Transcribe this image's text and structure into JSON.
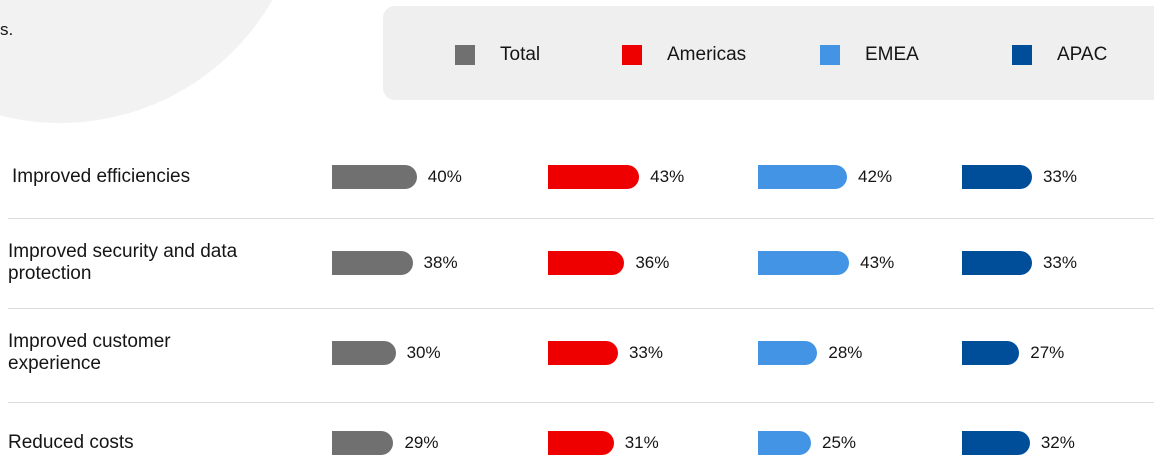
{
  "chart_data": {
    "type": "bar",
    "annotations": [
      "s."
    ],
    "categories": [
      "Improved efficiencies",
      "Improved security and data protection",
      "Improved customer experience",
      "Reduced costs"
    ],
    "series": [
      {
        "name": "Total",
        "color": "#707070",
        "values": [
          40,
          38,
          30,
          29
        ],
        "value_labels": [
          "40%",
          "38%",
          "30%",
          "29%"
        ]
      },
      {
        "name": "Americas",
        "color": "#ee0000",
        "values": [
          43,
          36,
          33,
          31
        ],
        "value_labels": [
          "43%",
          "36%",
          "33%",
          "31%"
        ]
      },
      {
        "name": "EMEA",
        "color": "#4394e5",
        "values": [
          42,
          43,
          28,
          25
        ],
        "value_labels": [
          "42%",
          "43%",
          "28%",
          "25%"
        ]
      },
      {
        "name": "APAC",
        "color": "#004d99",
        "values": [
          33,
          33,
          27,
          32
        ],
        "value_labels": [
          "33%",
          "33%",
          "27%",
          "32%"
        ]
      }
    ]
  }
}
